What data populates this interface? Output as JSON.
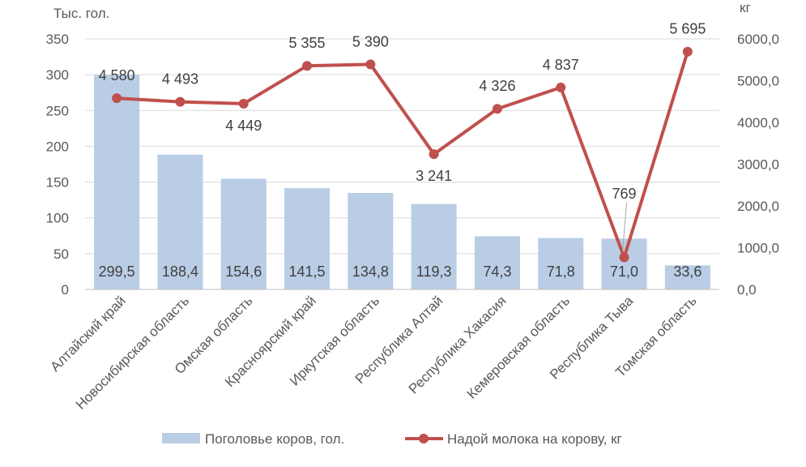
{
  "chart_data": {
    "type": "bar+line",
    "left_unit": "Тыс. гол.",
    "right_unit": "кг",
    "categories": [
      "Алтайский край",
      "Новосибирская область",
      "Омская область",
      "Красноярский край",
      "Иркутская область",
      "Республика Алтай",
      "Республика Хакасия",
      "Кемеровская область",
      "Республика Тыва",
      "Томская область"
    ],
    "series": [
      {
        "name": "Поголовье коров, гол.",
        "type": "bar",
        "axis": "left",
        "color": "#b9cde5",
        "values": [
          299.5,
          188.4,
          154.6,
          141.5,
          134.8,
          119.3,
          74.3,
          71.8,
          71.0,
          33.6
        ],
        "labels": [
          "299,5",
          "188,4",
          "154,6",
          "141,5",
          "134,8",
          "119,3",
          "74,3",
          "71,8",
          "71,0",
          "33,6"
        ]
      },
      {
        "name": "Надой молока на корову, кг",
        "type": "line",
        "axis": "right",
        "color": "#c0504d",
        "values": [
          4580,
          4493,
          4449,
          5355,
          5390,
          3241,
          4326,
          4837,
          769,
          5695
        ],
        "labels": [
          "4 580",
          "4 493",
          "4 449",
          "5 355",
          "5 390",
          "3 241",
          "4 326",
          "4 837",
          "769",
          "5 695"
        ]
      }
    ],
    "y_left": {
      "min": 0,
      "max": 350,
      "ticks": [
        "0",
        "50",
        "100",
        "150",
        "200",
        "250",
        "300",
        "350"
      ]
    },
    "y_right": {
      "min": 0,
      "max": 6000,
      "ticks": [
        "0,0",
        "1000,0",
        "2000,0",
        "3000,0",
        "4000,0",
        "5000,0",
        "6000,0"
      ]
    },
    "grid": true,
    "legend": "bottom"
  }
}
